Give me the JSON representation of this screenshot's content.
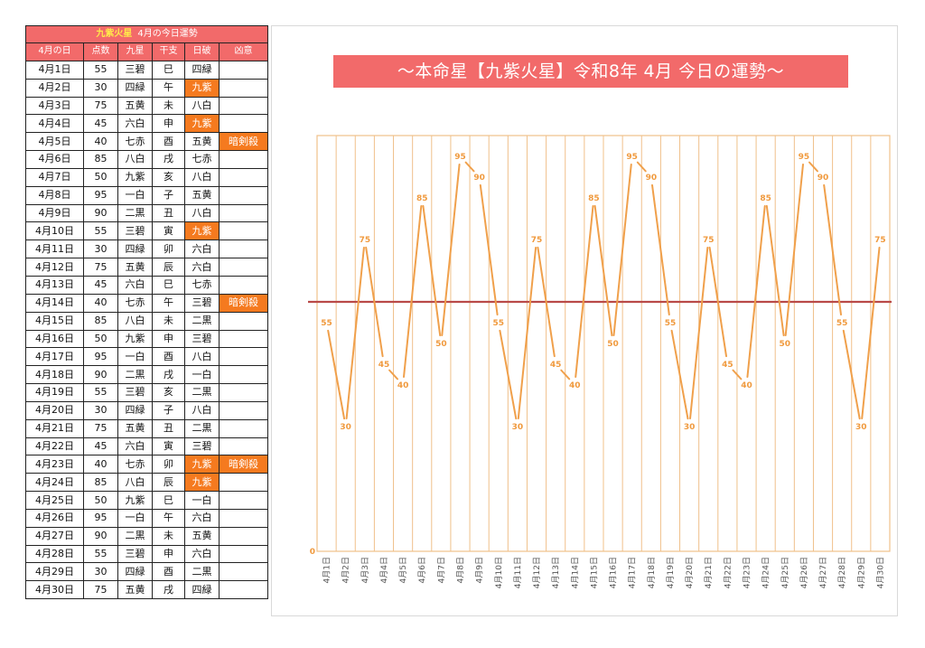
{
  "table": {
    "star": "九紫火星",
    "title": "4月の今日運勢",
    "headers": [
      "4月の日",
      "点数",
      "九星",
      "干支",
      "日破",
      "凶意"
    ],
    "rows": [
      {
        "day": "4月1日",
        "score": "55",
        "star": "三碧",
        "eto": "巳",
        "nippa": "四緑",
        "kyoi": ""
      },
      {
        "day": "4月2日",
        "score": "30",
        "star": "四緑",
        "eto": "午",
        "nippa": "九紫",
        "kyoi": ""
      },
      {
        "day": "4月3日",
        "score": "75",
        "star": "五黄",
        "eto": "未",
        "nippa": "八白",
        "kyoi": ""
      },
      {
        "day": "4月4日",
        "score": "45",
        "star": "六白",
        "eto": "申",
        "nippa": "九紫",
        "kyoi": ""
      },
      {
        "day": "4月5日",
        "score": "40",
        "star": "七赤",
        "eto": "酉",
        "nippa": "五黄",
        "kyoi": "暗剣殺"
      },
      {
        "day": "4月6日",
        "score": "85",
        "star": "八白",
        "eto": "戌",
        "nippa": "七赤",
        "kyoi": ""
      },
      {
        "day": "4月7日",
        "score": "50",
        "star": "九紫",
        "eto": "亥",
        "nippa": "八白",
        "kyoi": ""
      },
      {
        "day": "4月8日",
        "score": "95",
        "star": "一白",
        "eto": "子",
        "nippa": "五黄",
        "kyoi": ""
      },
      {
        "day": "4月9日",
        "score": "90",
        "star": "二黒",
        "eto": "丑",
        "nippa": "八白",
        "kyoi": ""
      },
      {
        "day": "4月10日",
        "score": "55",
        "star": "三碧",
        "eto": "寅",
        "nippa": "九紫",
        "kyoi": ""
      },
      {
        "day": "4月11日",
        "score": "30",
        "star": "四緑",
        "eto": "卯",
        "nippa": "六白",
        "kyoi": ""
      },
      {
        "day": "4月12日",
        "score": "75",
        "star": "五黄",
        "eto": "辰",
        "nippa": "六白",
        "kyoi": ""
      },
      {
        "day": "4月13日",
        "score": "45",
        "star": "六白",
        "eto": "巳",
        "nippa": "七赤",
        "kyoi": ""
      },
      {
        "day": "4月14日",
        "score": "40",
        "star": "七赤",
        "eto": "午",
        "nippa": "三碧",
        "kyoi": "暗剣殺"
      },
      {
        "day": "4月15日",
        "score": "85",
        "star": "八白",
        "eto": "未",
        "nippa": "二黒",
        "kyoi": ""
      },
      {
        "day": "4月16日",
        "score": "50",
        "star": "九紫",
        "eto": "申",
        "nippa": "三碧",
        "kyoi": ""
      },
      {
        "day": "4月17日",
        "score": "95",
        "star": "一白",
        "eto": "酉",
        "nippa": "八白",
        "kyoi": ""
      },
      {
        "day": "4月18日",
        "score": "90",
        "star": "二黒",
        "eto": "戌",
        "nippa": "一白",
        "kyoi": ""
      },
      {
        "day": "4月19日",
        "score": "55",
        "star": "三碧",
        "eto": "亥",
        "nippa": "二黒",
        "kyoi": ""
      },
      {
        "day": "4月20日",
        "score": "30",
        "star": "四緑",
        "eto": "子",
        "nippa": "八白",
        "kyoi": ""
      },
      {
        "day": "4月21日",
        "score": "75",
        "star": "五黄",
        "eto": "丑",
        "nippa": "二黒",
        "kyoi": ""
      },
      {
        "day": "4月22日",
        "score": "45",
        "star": "六白",
        "eto": "寅",
        "nippa": "三碧",
        "kyoi": ""
      },
      {
        "day": "4月23日",
        "score": "40",
        "star": "七赤",
        "eto": "卯",
        "nippa": "九紫",
        "kyoi": "暗剣殺"
      },
      {
        "day": "4月24日",
        "score": "85",
        "star": "八白",
        "eto": "辰",
        "nippa": "九紫",
        "kyoi": ""
      },
      {
        "day": "4月25日",
        "score": "50",
        "star": "九紫",
        "eto": "巳",
        "nippa": "一白",
        "kyoi": ""
      },
      {
        "day": "4月26日",
        "score": "95",
        "star": "一白",
        "eto": "午",
        "nippa": "六白",
        "kyoi": ""
      },
      {
        "day": "4月27日",
        "score": "90",
        "star": "二黒",
        "eto": "未",
        "nippa": "五黄",
        "kyoi": ""
      },
      {
        "day": "4月28日",
        "score": "55",
        "star": "三碧",
        "eto": "申",
        "nippa": "六白",
        "kyoi": ""
      },
      {
        "day": "4月29日",
        "score": "30",
        "star": "四緑",
        "eto": "酉",
        "nippa": "二黒",
        "kyoi": ""
      },
      {
        "day": "4月30日",
        "score": "75",
        "star": "五黄",
        "eto": "戌",
        "nippa": "四緑",
        "kyoi": ""
      }
    ],
    "highlight_value": "九紫"
  },
  "colors": {
    "header_bg": "#f26a6a",
    "star_text": "#ffe94a",
    "highlight_bg": "#f57a1f",
    "line": "#f0a04b",
    "gridline": "#f0c08a",
    "reference_line": "#b94a48"
  },
  "chart_data": {
    "type": "line",
    "title": "～本命星【九紫火星】令和8年 4月 今日の運勢～",
    "categories": [
      "4月1日",
      "4月2日",
      "4月3日",
      "4月4日",
      "4月5日",
      "4月6日",
      "4月7日",
      "4月8日",
      "4月9日",
      "4月10日",
      "4月11日",
      "4月12日",
      "4月13日",
      "4月14日",
      "4月15日",
      "4月16日",
      "4月17日",
      "4月18日",
      "4月19日",
      "4月20日",
      "4月21日",
      "4月22日",
      "4月23日",
      "4月24日",
      "4月25日",
      "4月26日",
      "4月27日",
      "4月28日",
      "4月29日",
      "4月30日"
    ],
    "values": [
      55,
      30,
      75,
      45,
      40,
      85,
      50,
      95,
      90,
      55,
      30,
      75,
      45,
      40,
      85,
      50,
      95,
      90,
      55,
      30,
      75,
      45,
      40,
      85,
      50,
      95,
      90,
      55,
      30,
      75
    ],
    "ylim": [
      0,
      100
    ],
    "y_tick_labels": [
      "0"
    ],
    "reference_line": 60,
    "data_labels": true,
    "grid": "vertical",
    "xlabel": "",
    "ylabel": ""
  }
}
